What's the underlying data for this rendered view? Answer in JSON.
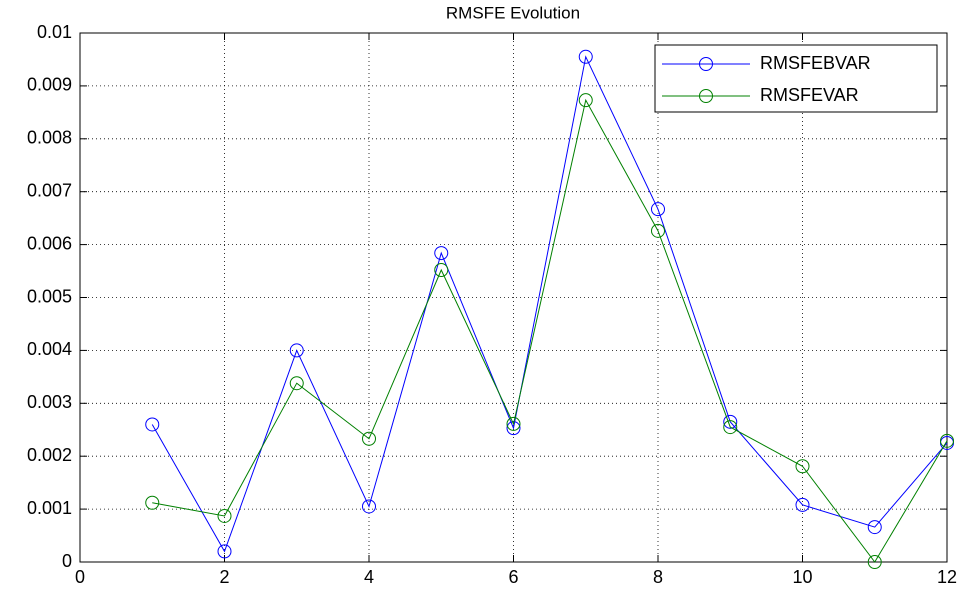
{
  "chart_data": {
    "type": "line",
    "title": "RMSFE Evolution",
    "x": [
      1,
      2,
      3,
      4,
      5,
      6,
      7,
      8,
      9,
      10,
      11,
      12
    ],
    "series": [
      {
        "name": "RMSFEBVAR",
        "color": "#0000ff",
        "values": [
          0.0026,
          0.0002,
          0.004,
          0.00105,
          0.00584,
          0.00253,
          0.00955,
          0.00667,
          0.00265,
          0.00108,
          0.00066,
          0.00225
        ]
      },
      {
        "name": "RMSFEVAR",
        "color": "#008000",
        "values": [
          0.00112,
          0.00087,
          0.00338,
          0.00233,
          0.00552,
          0.00261,
          0.00873,
          0.00626,
          0.00255,
          0.00181,
          0,
          0.00229
        ]
      }
    ],
    "xlim": [
      0,
      12
    ],
    "xticks": [
      0,
      2,
      4,
      6,
      8,
      10,
      12
    ],
    "ylim": [
      0,
      0.01
    ],
    "yticks": [
      0,
      0.001,
      0.002,
      0.003,
      0.004,
      0.005,
      0.006,
      0.007,
      0.008,
      0.009,
      0.01
    ],
    "grid": true,
    "legend": "top-right",
    "marker": "circle"
  }
}
